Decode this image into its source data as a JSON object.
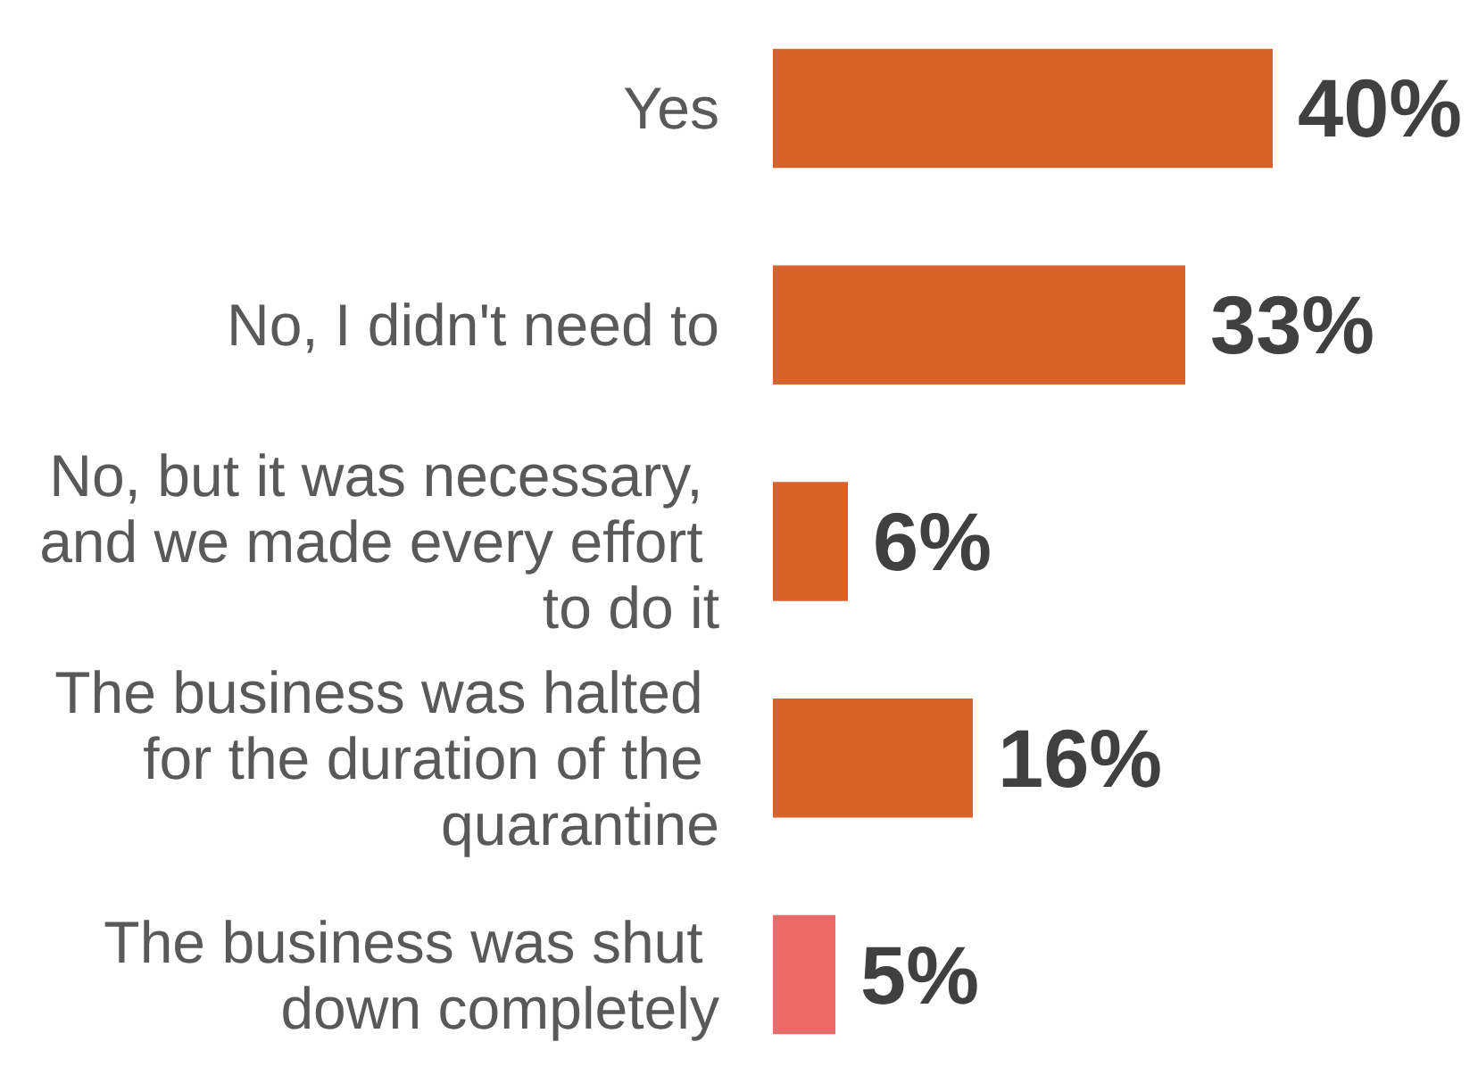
{
  "chart_data": {
    "type": "bar",
    "orientation": "horizontal",
    "categories": [
      "Yes",
      "No, I didn't need to",
      "No, but it was necessary, and we made every effort to do it",
      "The business was halted for the duration of the quarantine",
      "The business was shut down completely"
    ],
    "values": [
      40,
      33,
      6,
      16,
      5
    ],
    "value_labels": [
      "40%",
      "33%",
      "6%",
      "16%",
      "5%"
    ],
    "colors": [
      "#d9622b",
      "#d9622b",
      "#d9622b",
      "#d9622b",
      "#ed6a6a"
    ]
  }
}
